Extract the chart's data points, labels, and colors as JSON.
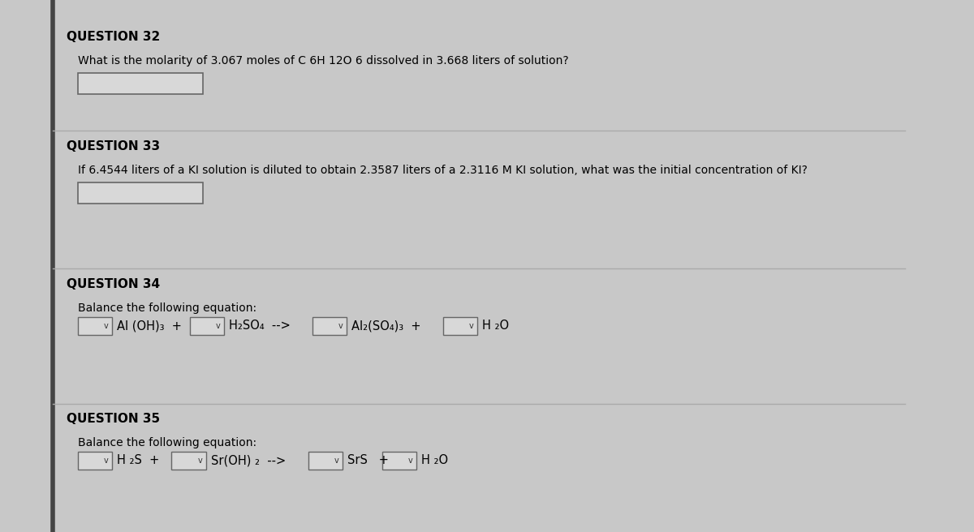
{
  "bg_color": "#c8c8c8",
  "content_bg": "#e0e0e0",
  "title_color": "#000000",
  "text_color": "#000000",
  "figsize": [
    12.0,
    6.56
  ],
  "dpi": 100,
  "q32_id": "QUESTION 32",
  "q32_text": "What is the molarity of 3.067 moles of C 6H 12O 6 dissolved in 3.668 liters of solution?",
  "q33_id": "QUESTION 33",
  "q33_text": "If 6.4544 liters of a KI solution is diluted to obtain 2.3587 liters of a 2.3116 M KI solution, what was the initial concentration of KI?",
  "q34_id": "QUESTION 34",
  "q34_text": "Balance the following equation:",
  "q35_id": "QUESTION 35",
  "q35_text": "Balance the following equation:"
}
